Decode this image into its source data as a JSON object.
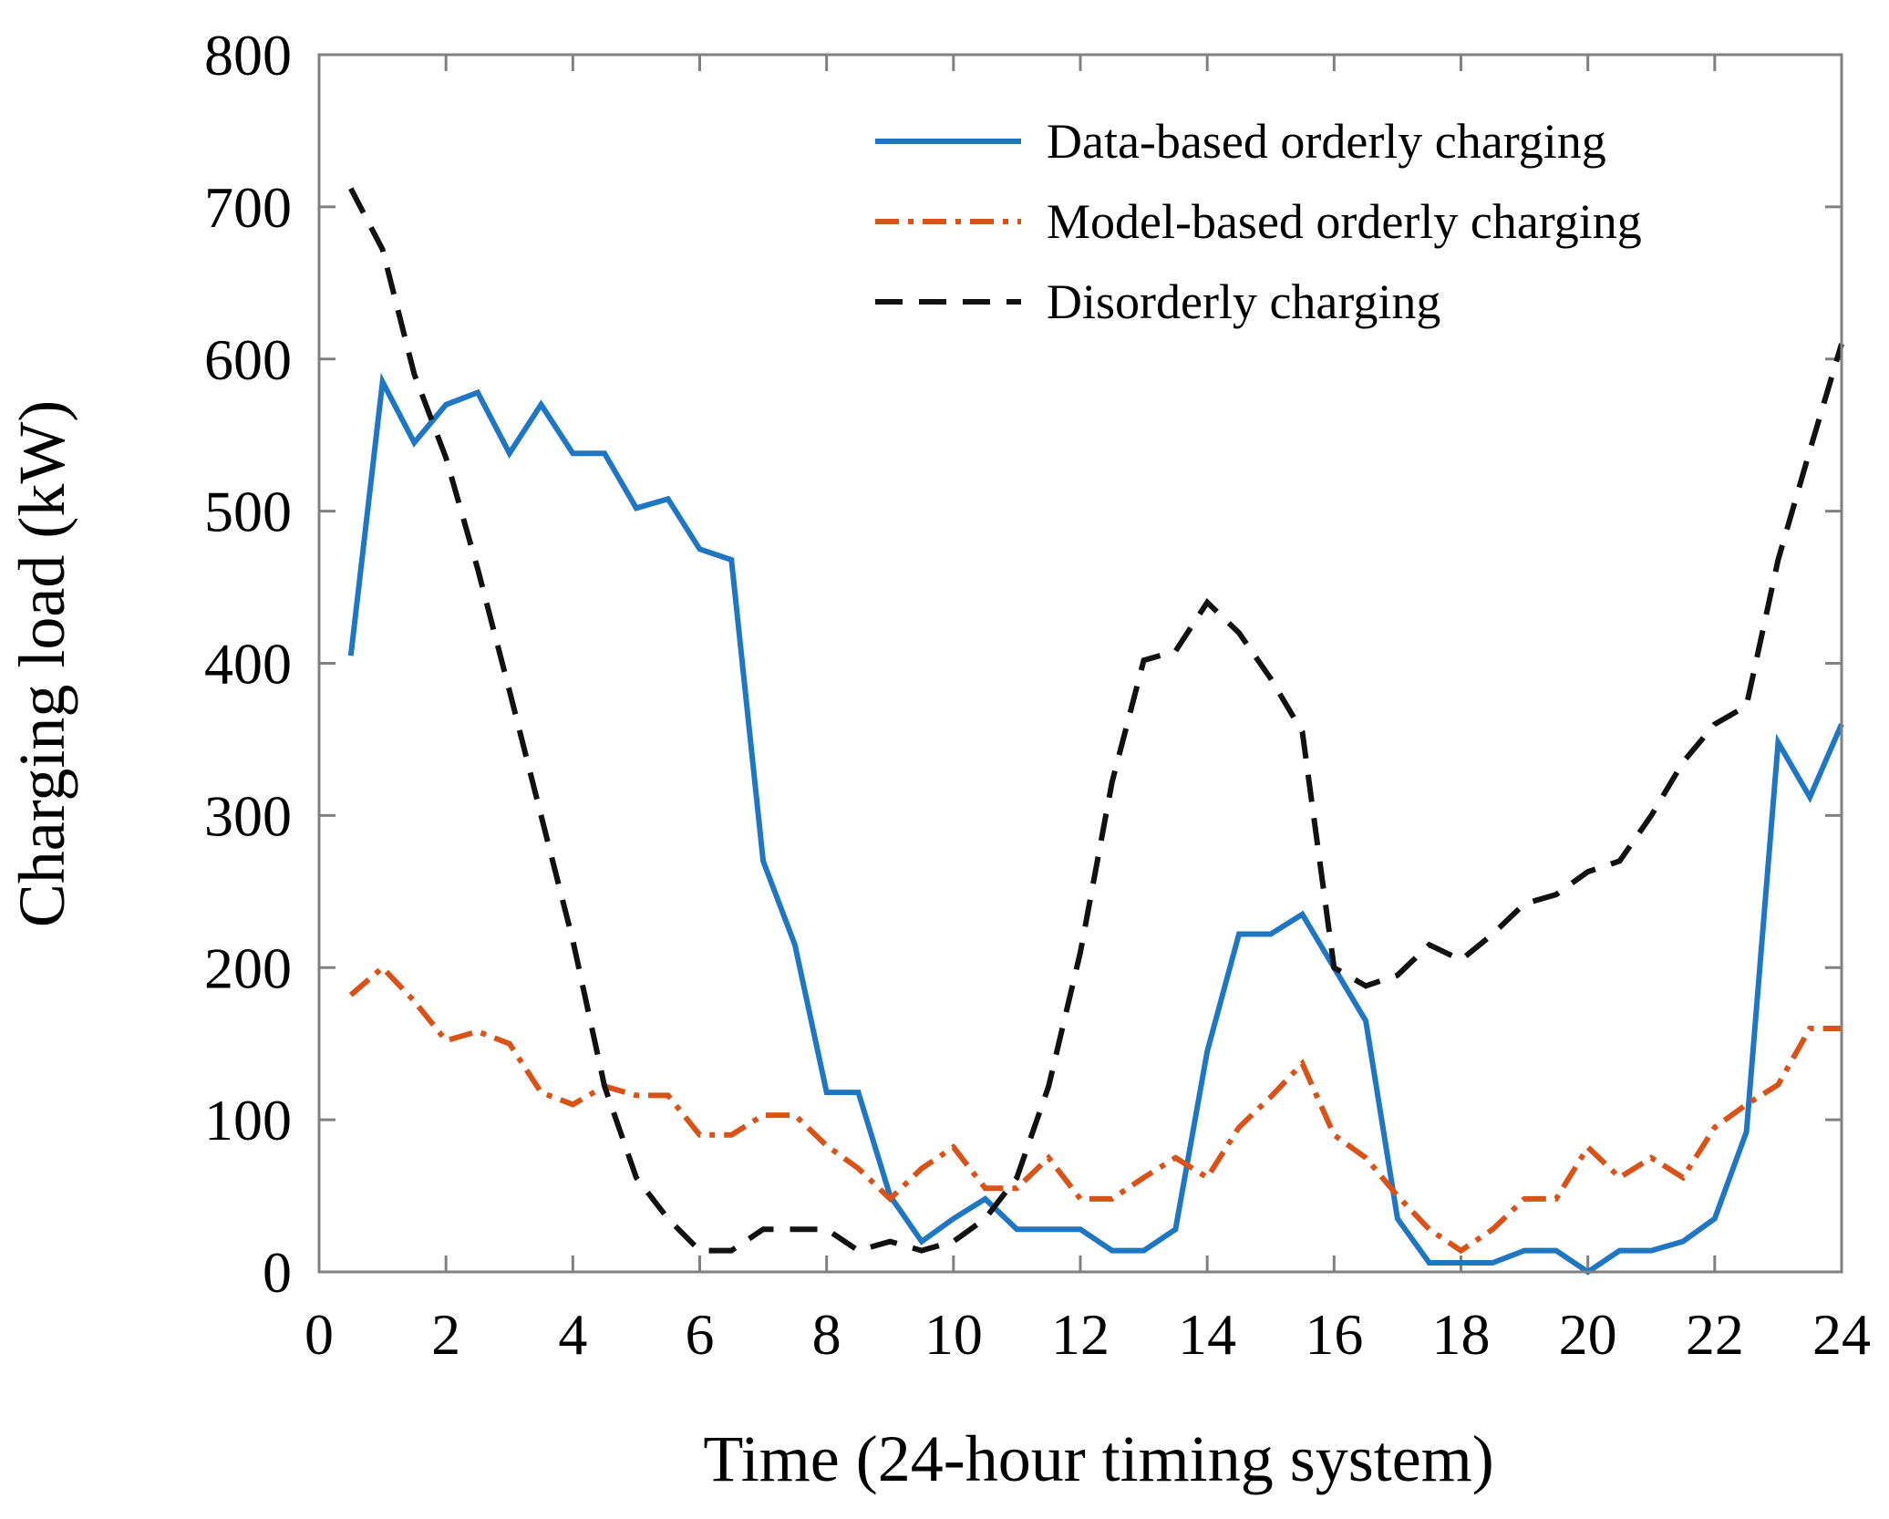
{
  "chart_data": {
    "type": "line",
    "title": "",
    "xlabel": "Time (24-hour timing system)",
    "ylabel": "Charging load (kW)",
    "xlim": [
      0,
      24
    ],
    "ylim": [
      0,
      800
    ],
    "xticks": [
      0,
      2,
      4,
      6,
      8,
      10,
      12,
      14,
      16,
      18,
      20,
      22,
      24
    ],
    "yticks": [
      0,
      100,
      200,
      300,
      400,
      500,
      600,
      700,
      800
    ],
    "grid": false,
    "legend_position": "top-right",
    "x": [
      0.5,
      1,
      1.5,
      2,
      2.5,
      3,
      3.5,
      4,
      4.5,
      5,
      5.5,
      6,
      6.5,
      7,
      7.5,
      8,
      8.5,
      9,
      9.5,
      10,
      10.5,
      11,
      11.5,
      12,
      12.5,
      13,
      13.5,
      14,
      14.5,
      15,
      15.5,
      16,
      16.5,
      17,
      17.5,
      18,
      18.5,
      19,
      19.5,
      20,
      20.5,
      21,
      21.5,
      22,
      22.5,
      23,
      23.5,
      24
    ],
    "series": [
      {
        "name": "Data-based orderly charging",
        "color": "#1f77c4",
        "dash": "solid",
        "values": [
          405,
          585,
          545,
          570,
          578,
          538,
          570,
          538,
          538,
          502,
          508,
          475,
          468,
          270,
          215,
          118,
          118,
          50,
          20,
          35,
          48,
          28,
          28,
          28,
          14,
          14,
          28,
          145,
          222,
          222,
          235,
          200,
          165,
          35,
          6,
          6,
          6,
          14,
          14,
          0,
          14,
          14,
          20,
          35,
          92,
          348,
          312,
          360
        ]
      },
      {
        "name": "Model-based orderly charging",
        "color": "#d95319",
        "dash": "dashdot",
        "values": [
          182,
          200,
          178,
          152,
          158,
          150,
          118,
          110,
          122,
          116,
          116,
          90,
          90,
          103,
          103,
          83,
          68,
          48,
          68,
          82,
          55,
          55,
          75,
          48,
          48,
          62,
          75,
          62,
          95,
          115,
          137,
          90,
          75,
          50,
          28,
          14,
          28,
          48,
          48,
          82,
          62,
          75,
          62,
          95,
          110,
          123,
          160,
          160
        ]
      },
      {
        "name": "Disorderly charging",
        "color": "#111111",
        "dash": "dashed",
        "values": [
          712,
          672,
          590,
          535,
          462,
          382,
          300,
          218,
          122,
          62,
          35,
          14,
          14,
          28,
          28,
          28,
          14,
          20,
          14,
          20,
          35,
          62,
          122,
          210,
          322,
          402,
          408,
          440,
          420,
          390,
          355,
          200,
          188,
          195,
          215,
          205,
          222,
          242,
          248,
          263,
          270,
          300,
          335,
          360,
          372,
          468,
          540,
          610
        ]
      }
    ]
  }
}
